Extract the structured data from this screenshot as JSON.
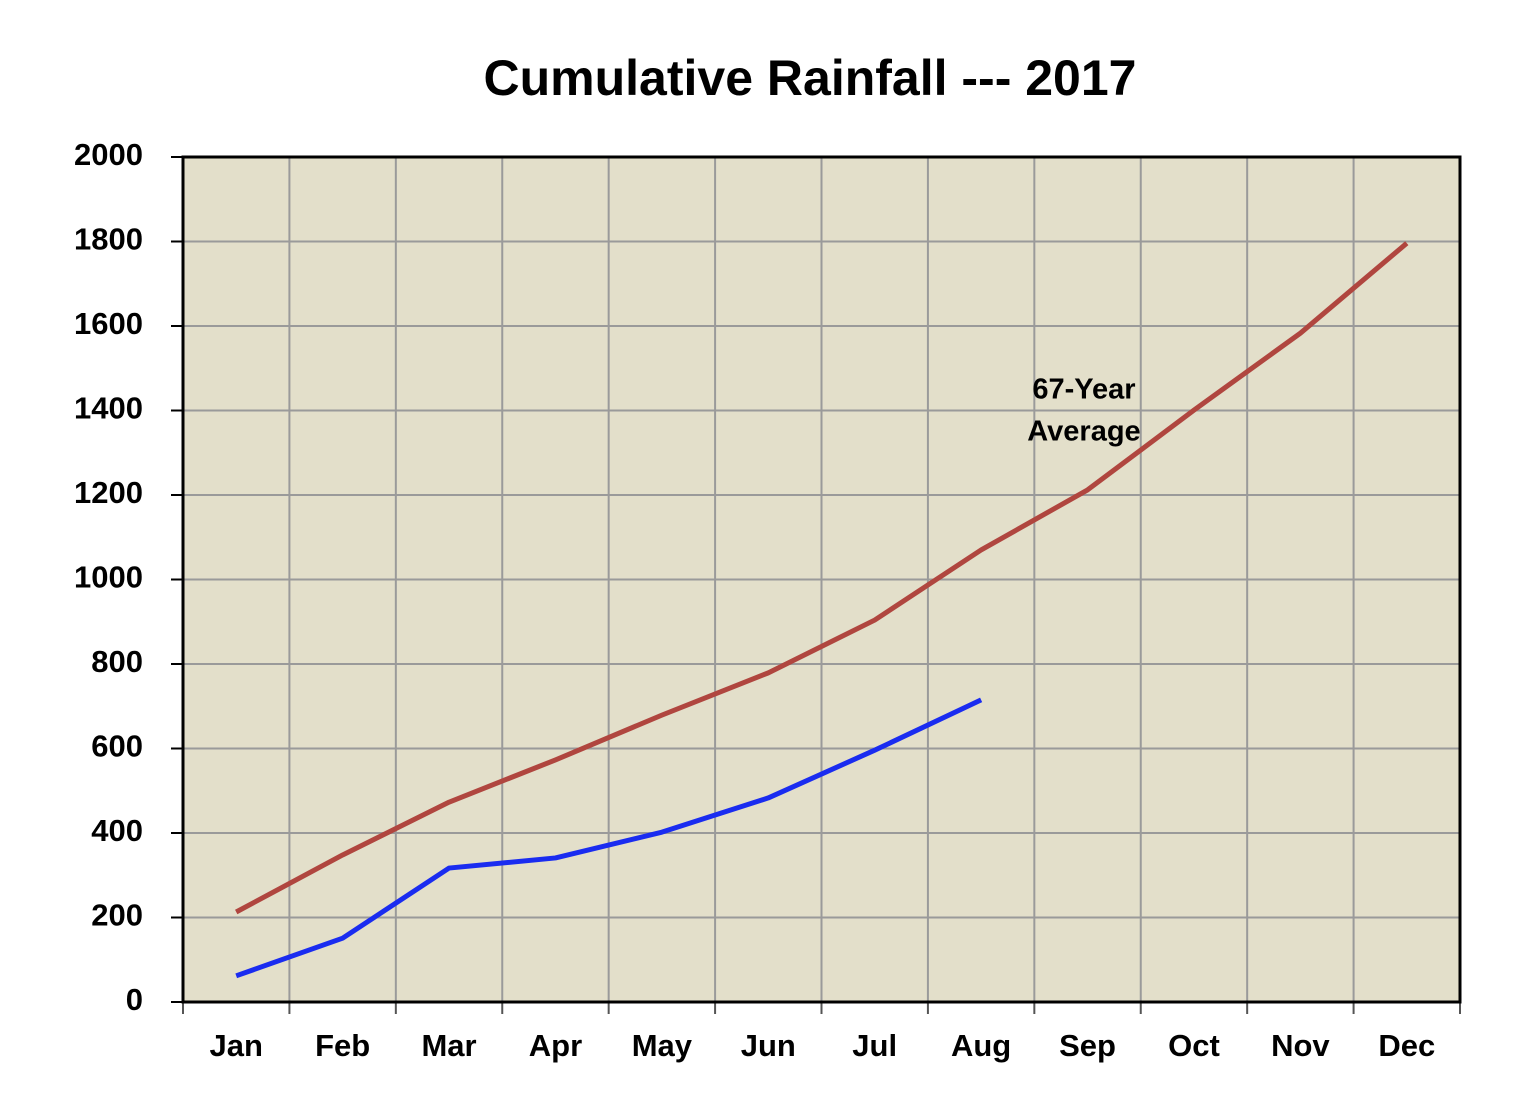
{
  "chart_data": {
    "type": "line",
    "title": "Cumulative Rainfall --- 2017",
    "categories": [
      "Jan",
      "Feb",
      "Mar",
      "Apr",
      "May",
      "Jun",
      "Jul",
      "Aug",
      "Sep",
      "Oct",
      "Nov",
      "Dec"
    ],
    "series": [
      {
        "color": "#b0463f",
        "values": [
          213,
          348,
          473,
          573,
          679,
          779,
          904,
          1070,
          1212,
          1401,
          1583,
          1796
        ]
      },
      {
        "color": "#1a2cf0",
        "values": [
          62,
          151,
          317,
          341,
          402,
          483,
          596,
          715,
          null,
          null,
          null,
          null
        ]
      }
    ],
    "annotation": [
      "67-Year",
      "Average"
    ],
    "ylim": [
      0,
      2000
    ],
    "yticks": [
      0,
      200,
      400,
      600,
      800,
      1000,
      1200,
      1400,
      1600,
      1800,
      2000
    ],
    "grid": true
  }
}
